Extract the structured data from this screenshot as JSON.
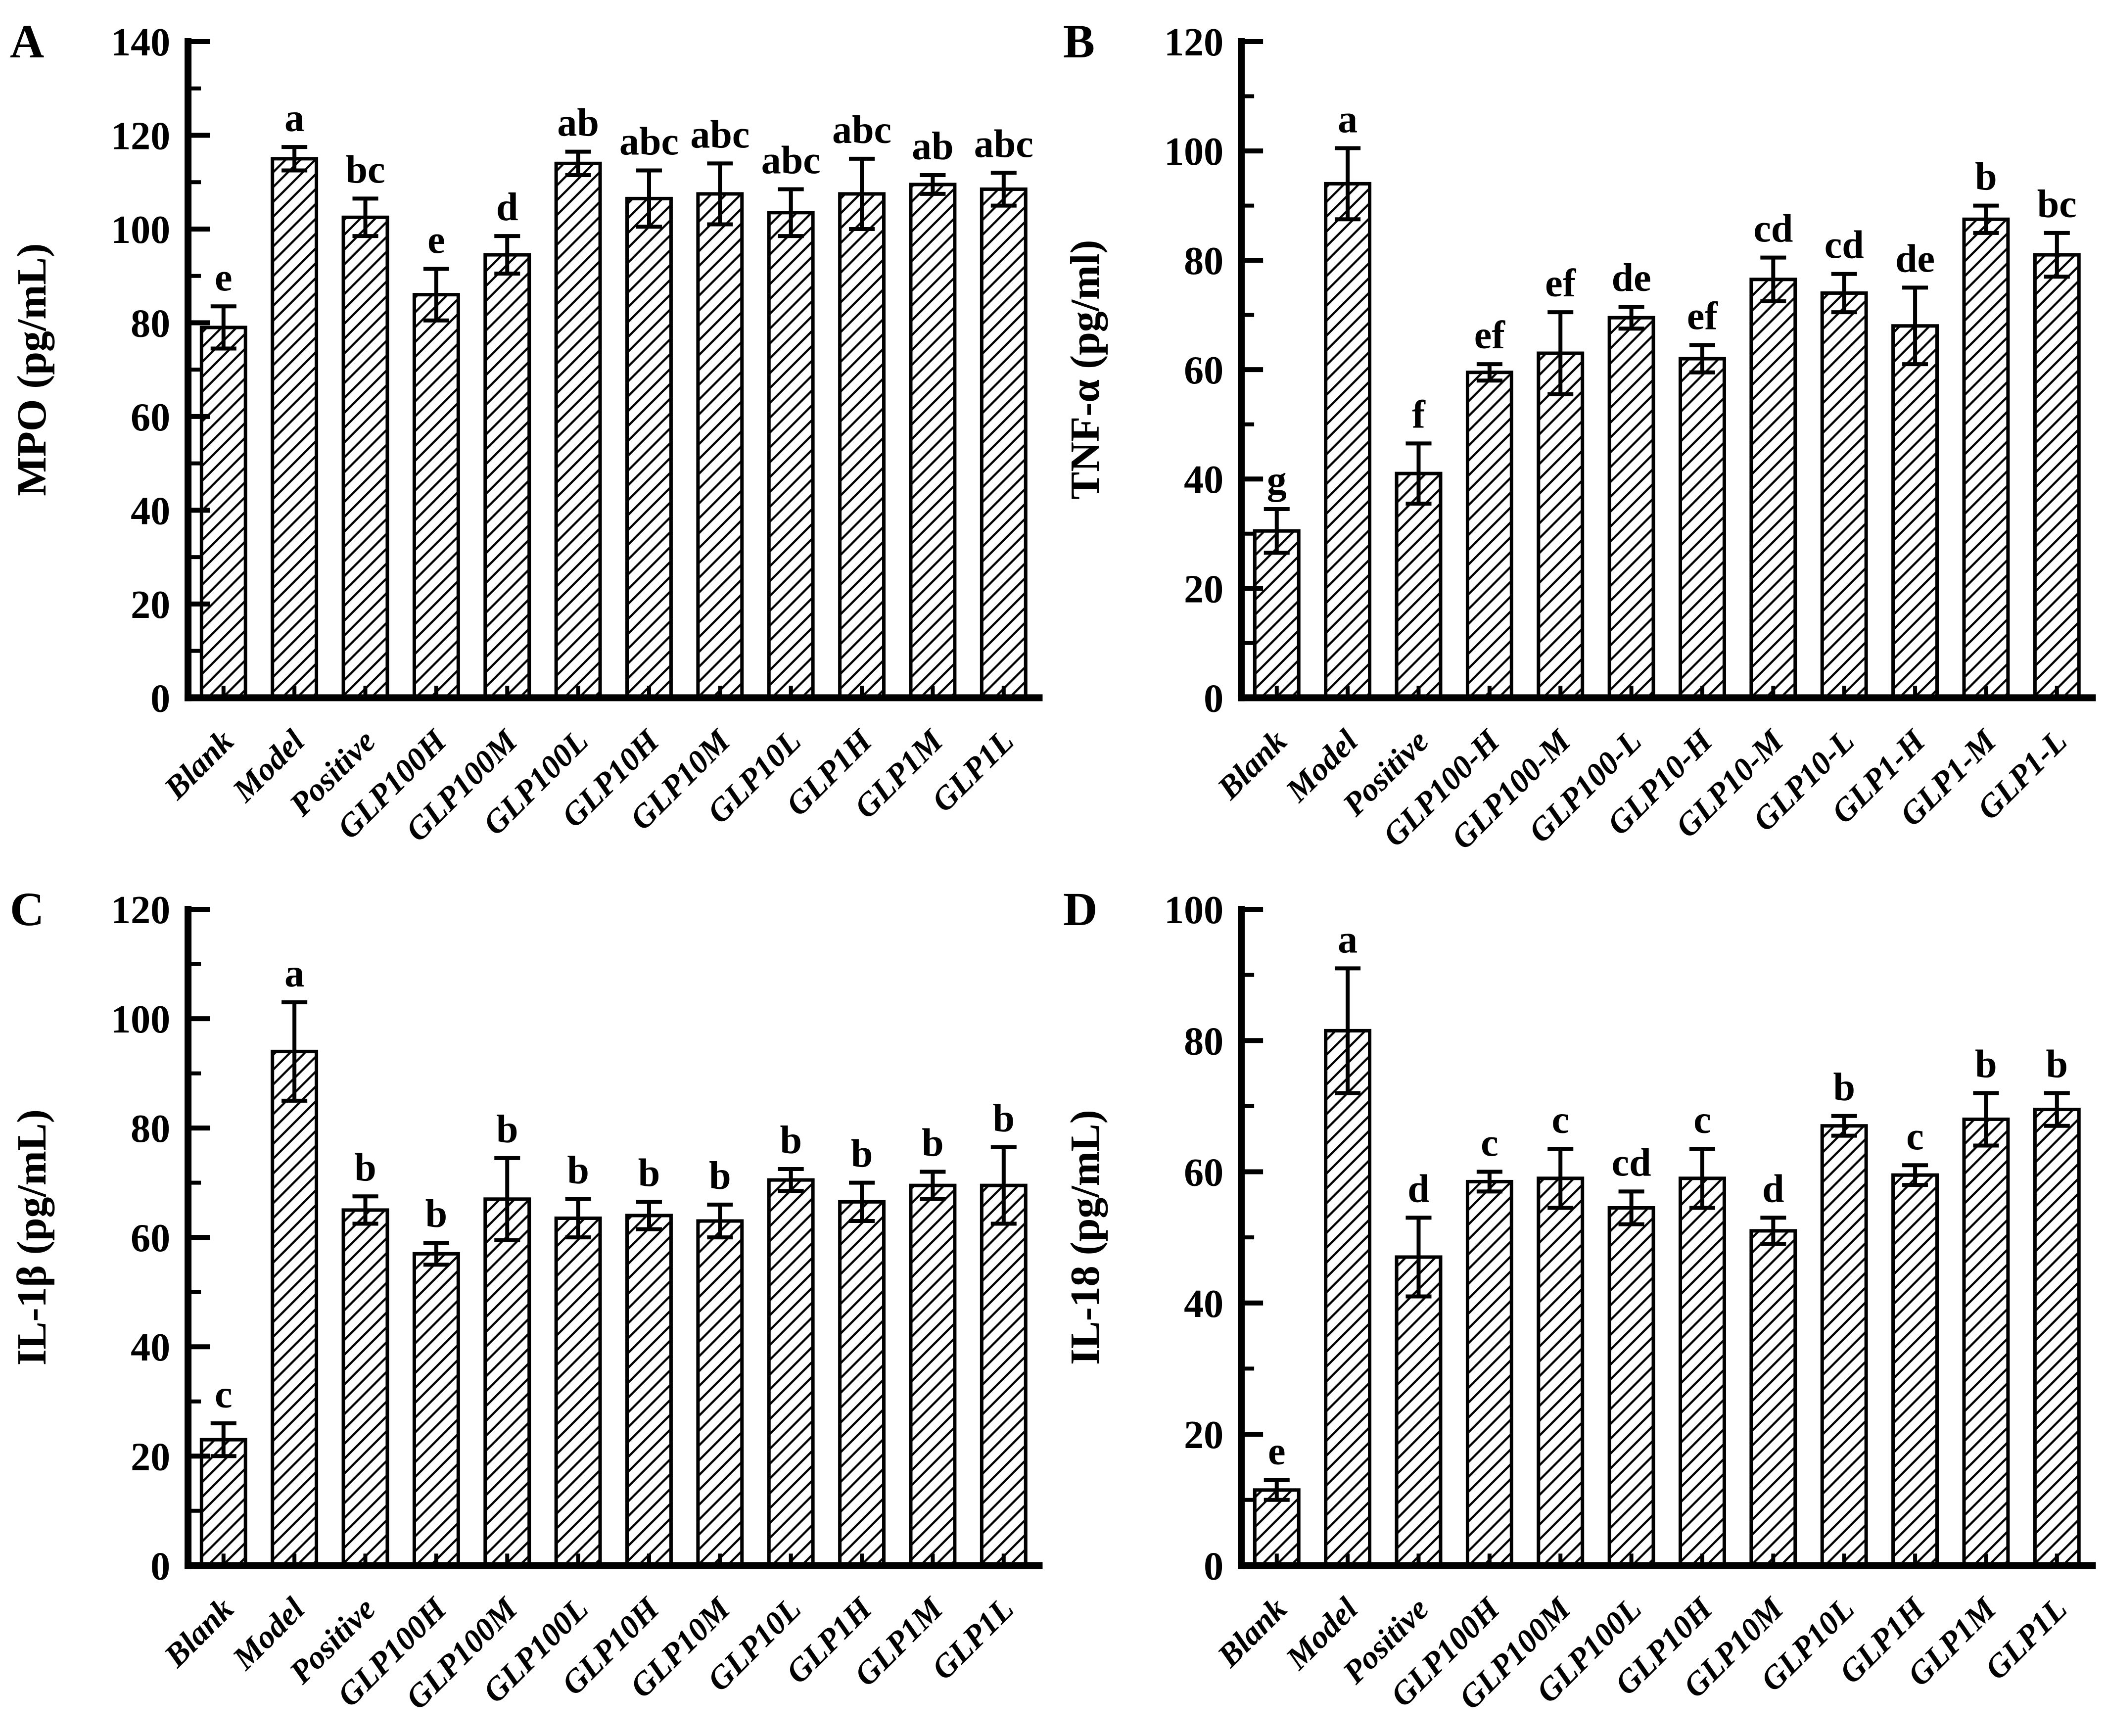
{
  "figure": {
    "background": "#ffffff",
    "ink_color": "#000000",
    "layout": "2x2-panel-grid",
    "bar_style": "white bars with black forward-diagonal hatching, black error bars with caps, significance letters above bars"
  },
  "chart_data": [
    {
      "panel": "A",
      "type": "bar",
      "ylabel": "MPO (pg/mL)",
      "xlabel": "",
      "ylim": [
        0,
        140
      ],
      "yticks": [
        0,
        20,
        40,
        60,
        80,
        100,
        120,
        140
      ],
      "ytick_step": 20,
      "yminor_step": 10,
      "grid": false,
      "legend": "none",
      "categories": [
        "Blank",
        "Model",
        "Positive",
        "GLP100H",
        "GLP100M",
        "GLP100L",
        "GLP10H",
        "GLP10M",
        "GLP10L",
        "GLP1H",
        "GLP1M",
        "GLP1L"
      ],
      "values": [
        79,
        115,
        102.5,
        86,
        94.5,
        114,
        106.5,
        107.5,
        103.5,
        107.5,
        109.5,
        108.5
      ],
      "errors": [
        4.5,
        2.5,
        4,
        5.5,
        4,
        2.5,
        6,
        6.5,
        5,
        7.5,
        2,
        3.5
      ],
      "sig_letters": [
        "e",
        "a",
        "bc",
        "e",
        "d",
        "ab",
        "abc",
        "abc",
        "abc",
        "abc",
        "ab",
        "abc"
      ]
    },
    {
      "panel": "B",
      "type": "bar",
      "ylabel": "TNF-α (pg/ml)",
      "xlabel": "",
      "ylim": [
        0,
        120
      ],
      "yticks": [
        0,
        20,
        40,
        60,
        80,
        100,
        120
      ],
      "ytick_step": 20,
      "yminor_step": 10,
      "grid": false,
      "legend": "none",
      "categories": [
        "Blank",
        "Model",
        "Positive",
        "GLP100-H",
        "GLP100-M",
        "GLP100-L",
        "GLP10-H",
        "GLP10-M",
        "GLP10-L",
        "GLP1-H",
        "GLP1-M",
        "GLP1-L"
      ],
      "values": [
        30.5,
        94,
        41,
        59.5,
        63,
        69.5,
        62,
        76.5,
        74,
        68,
        87.5,
        81
      ],
      "errors": [
        4,
        6.5,
        5.5,
        1.5,
        7.5,
        2,
        2.5,
        4,
        3.5,
        7,
        2.5,
        4
      ],
      "sig_letters": [
        "g",
        "a",
        "f",
        "ef",
        "ef",
        "de",
        "ef",
        "cd",
        "cd",
        "de",
        "b",
        "bc"
      ]
    },
    {
      "panel": "C",
      "type": "bar",
      "ylabel": "IL-1β (pg/mL)",
      "xlabel": "",
      "ylim": [
        0,
        120
      ],
      "yticks": [
        0,
        20,
        40,
        60,
        80,
        100,
        120
      ],
      "ytick_step": 20,
      "yminor_step": 10,
      "grid": false,
      "legend": "none",
      "categories": [
        "Blank",
        "Model",
        "Positive",
        "GLP100H",
        "GLP100M",
        "GLP100L",
        "GLP10H",
        "GLP10M",
        "GLP10L",
        "GLP1H",
        "GLP1M",
        "GLP1L"
      ],
      "values": [
        23,
        94,
        65,
        57,
        67,
        63.5,
        64,
        63,
        70.5,
        66.5,
        69.5,
        69.5
      ],
      "errors": [
        3,
        9,
        2.5,
        2,
        7.5,
        3.5,
        2.5,
        3,
        2,
        3.5,
        2.5,
        7
      ],
      "sig_letters": [
        "c",
        "a",
        "b",
        "b",
        "b",
        "b",
        "b",
        "b",
        "b",
        "b",
        "b",
        "b"
      ]
    },
    {
      "panel": "D",
      "type": "bar",
      "ylabel": "IL-18 (pg/mL)",
      "xlabel": "",
      "ylim": [
        0,
        100
      ],
      "yticks": [
        0,
        20,
        40,
        60,
        80,
        100
      ],
      "ytick_step": 20,
      "yminor_step": 10,
      "grid": false,
      "legend": "none",
      "categories": [
        "Blank",
        "Model",
        "Positive",
        "GLP100H",
        "GLP100M",
        "GLP100L",
        "GLP10H",
        "GLP10M",
        "GLP10L",
        "GLP1H",
        "GLP1M",
        "GLP1L"
      ],
      "values": [
        11.5,
        81.5,
        47,
        58.5,
        59,
        54.5,
        59,
        51,
        67,
        59.5,
        68,
        69.5
      ],
      "errors": [
        1.5,
        9.5,
        6,
        1.5,
        4.5,
        2.5,
        4.5,
        2,
        1.5,
        1.5,
        4,
        2.5
      ],
      "sig_letters": [
        "e",
        "a",
        "d",
        "c",
        "c",
        "cd",
        "c",
        "d",
        "b",
        "c",
        "b",
        "b"
      ]
    }
  ]
}
